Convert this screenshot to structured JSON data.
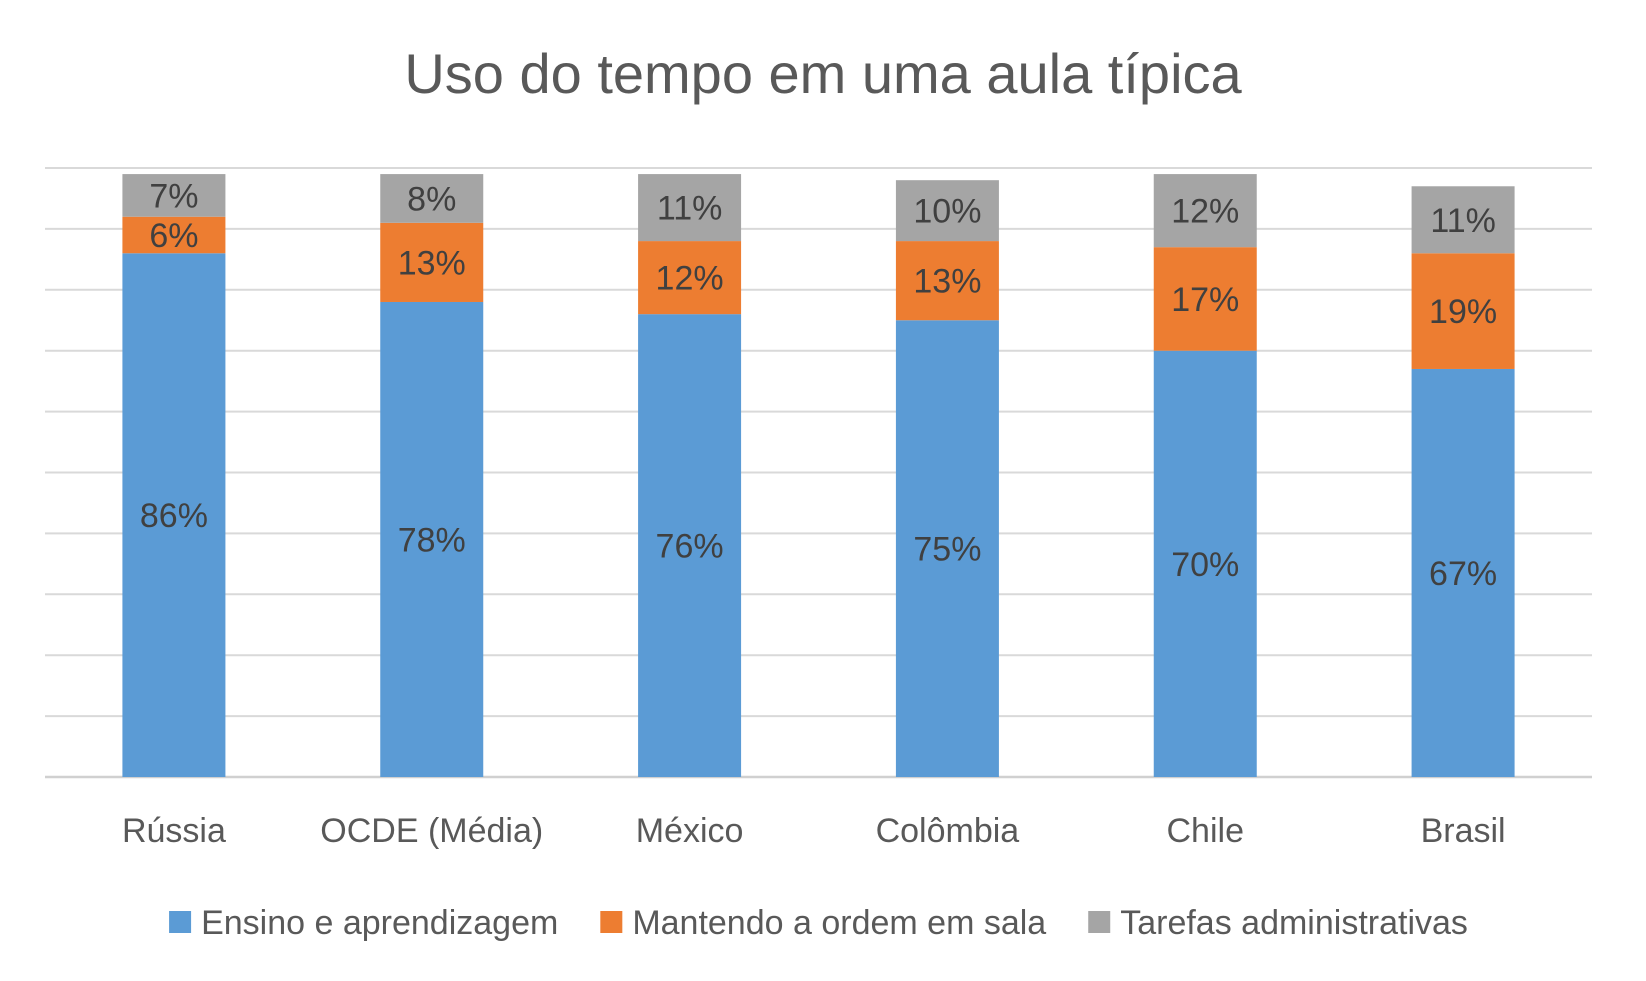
{
  "chart_data": {
    "type": "bar",
    "stacked": true,
    "title": "Uso do tempo em uma aula típica",
    "xlabel": "",
    "ylabel": "",
    "ylim": [
      0,
      100
    ],
    "grid": true,
    "legend_position": "bottom",
    "categories": [
      "Rússia",
      "OCDE (Média)",
      "México",
      "Colômbia",
      "Chile",
      "Brasil"
    ],
    "series": [
      {
        "name": "Ensino e aprendizagem",
        "color": "#5B9BD5",
        "values": [
          86,
          78,
          76,
          75,
          70,
          67
        ],
        "labels": [
          "86%",
          "78%",
          "76%",
          "75%",
          "70%",
          "67%"
        ]
      },
      {
        "name": "Mantendo a ordem em sala",
        "color": "#ED7D31",
        "values": [
          6,
          13,
          12,
          13,
          17,
          19
        ],
        "labels": [
          "6%",
          "13%",
          "12%",
          "13%",
          "17%",
          "19%"
        ]
      },
      {
        "name": "Tarefas administrativas",
        "color": "#A5A5A5",
        "values": [
          7,
          8,
          11,
          10,
          12,
          11
        ],
        "labels": [
          "7%",
          "8%",
          "11%",
          "10%",
          "12%",
          "11%"
        ]
      }
    ]
  }
}
